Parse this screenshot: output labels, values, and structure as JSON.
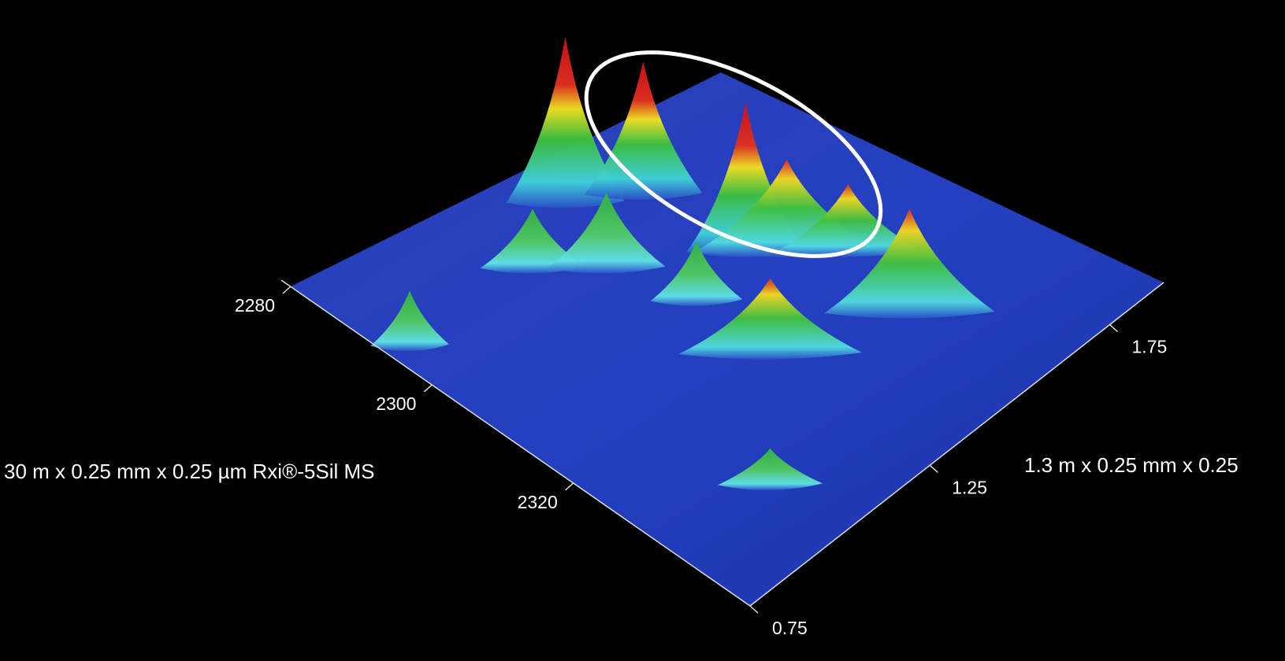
{
  "chart_data": {
    "type": "surface",
    "xlabel": "30 m x 0.25 mm x 0.25 µm Rxi®-5Sil MS",
    "ylabel": "1.3 m x 0.25 mm x 0.25",
    "xlim": [
      2280,
      2345
    ],
    "xticks": [
      2280,
      2300,
      2320
    ],
    "ylim": [
      0.75,
      1.9
    ],
    "yticks": [
      0.75,
      1.25,
      1.75
    ]
  }
}
